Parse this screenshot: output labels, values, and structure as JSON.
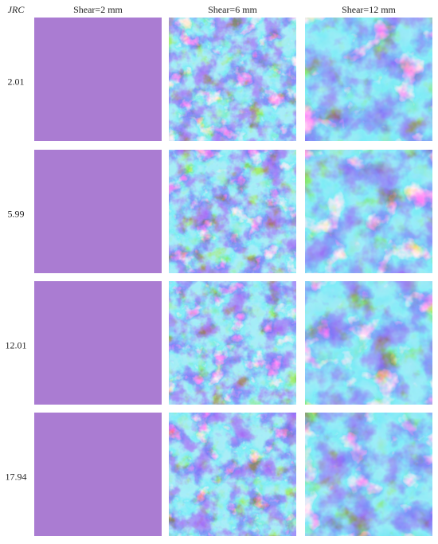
{
  "header": {
    "row_title": "JRC",
    "columns": [
      "Shear=2 mm",
      "Shear=6 mm",
      "Shear=12 mm"
    ]
  },
  "rows": [
    "2.01",
    "5.99",
    "12.01",
    "17.94"
  ]
}
